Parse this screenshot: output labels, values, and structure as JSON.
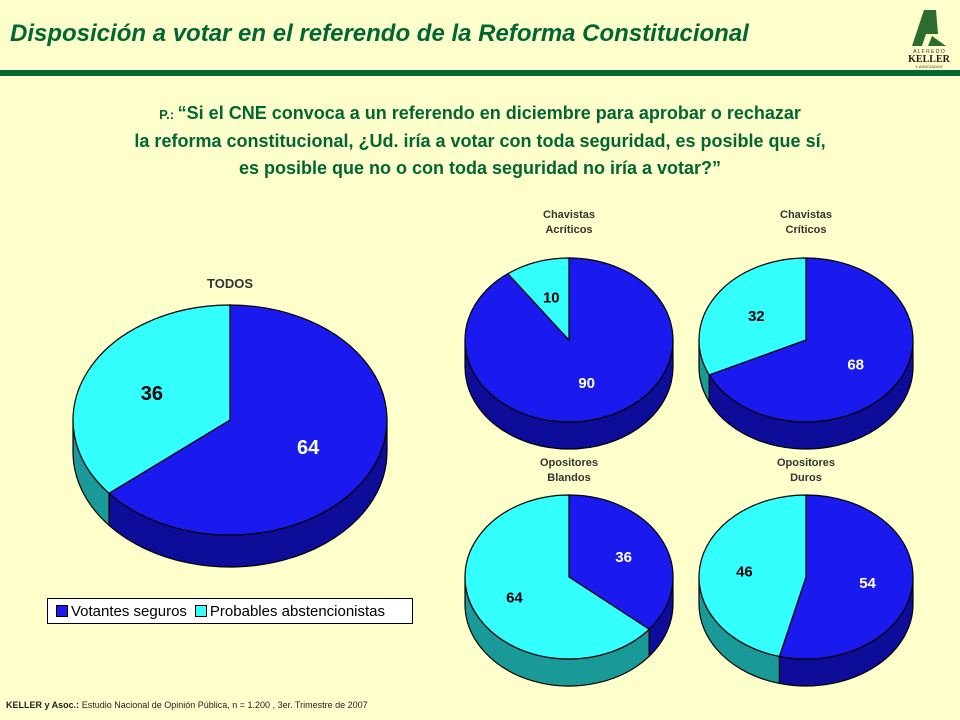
{
  "title": "Disposición a votar en el referendo de la Reforma Constitucional",
  "logo": {
    "top": "A L F R E D O",
    "name": "KELLER",
    "bottom": "Y ASOCIADOS"
  },
  "question": {
    "prefix": "P.: ",
    "line1": "“Si el CNE convoca a un referendo en diciembre para aprobar o rechazar",
    "line2": "la reforma constitucional, ¿Ud. iría a votar con toda seguridad, es posible que sí,",
    "line3": "es posible que no o con toda seguridad no iría a votar?”"
  },
  "legend": {
    "items": [
      "Votantes seguros",
      "Probables abstencionistas"
    ]
  },
  "footer": {
    "source_bold": "KELLER y Asoc.:",
    "source_text": " Estudio Nacional de Opinión Pública, n = 1.200 , 3er. Trimestre de 2007"
  },
  "colors": {
    "blue": "#1a1aee",
    "cyan": "#33ffff",
    "title_green": "#006633",
    "background": "#ffffcc"
  },
  "chart_data": [
    {
      "type": "pie",
      "title": "TODOS",
      "categories": [
        "Votantes seguros",
        "Probables abstencionistas"
      ],
      "values": [
        64,
        36
      ]
    },
    {
      "type": "pie",
      "title": [
        "Chavistas",
        "Acríticos"
      ],
      "categories": [
        "Votantes seguros",
        "Probables abstencionistas"
      ],
      "values": [
        90,
        10
      ]
    },
    {
      "type": "pie",
      "title": [
        "Chavistas",
        "Críticos"
      ],
      "categories": [
        "Votantes seguros",
        "Probables abstencionistas"
      ],
      "values": [
        68,
        32
      ]
    },
    {
      "type": "pie",
      "title": [
        "Opositores",
        "Blandos"
      ],
      "categories": [
        "Votantes seguros",
        "Probables abstencionistas"
      ],
      "values": [
        36,
        64
      ]
    },
    {
      "type": "pie",
      "title": [
        "Opositores",
        "Duros"
      ],
      "categories": [
        "Votantes seguros",
        "Probables abstencionistas"
      ],
      "values": [
        54,
        46
      ]
    }
  ]
}
